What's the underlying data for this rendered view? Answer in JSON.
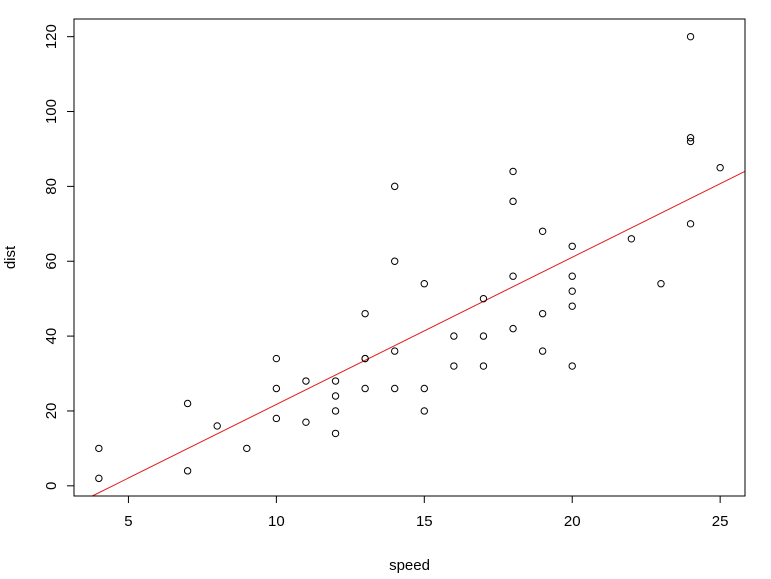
{
  "chart_data": {
    "type": "scatter",
    "title": "",
    "xlabel": "speed",
    "ylabel": "dist",
    "xlim": [
      3.16,
      25.84
    ],
    "ylim": [
      -2.72,
      124.72
    ],
    "xticks": [
      5,
      10,
      15,
      20,
      25
    ],
    "yticks": [
      0,
      20,
      40,
      60,
      80,
      100,
      120
    ],
    "x_tick_labels": [
      "5",
      "10",
      "15",
      "20",
      "25"
    ],
    "y_tick_labels": [
      "0",
      "20",
      "40",
      "60",
      "80",
      "100",
      "120"
    ],
    "grid": false,
    "points_color": "#000000",
    "line_color": "#e41a1c",
    "points": [
      [
        4,
        2
      ],
      [
        4,
        10
      ],
      [
        7,
        4
      ],
      [
        7,
        22
      ],
      [
        8,
        16
      ],
      [
        9,
        10
      ],
      [
        10,
        18
      ],
      [
        10,
        26
      ],
      [
        10,
        34
      ],
      [
        11,
        17
      ],
      [
        11,
        28
      ],
      [
        12,
        14
      ],
      [
        12,
        20
      ],
      [
        12,
        24
      ],
      [
        12,
        28
      ],
      [
        13,
        26
      ],
      [
        13,
        34
      ],
      [
        13,
        34
      ],
      [
        13,
        46
      ],
      [
        14,
        26
      ],
      [
        14,
        36
      ],
      [
        14,
        60
      ],
      [
        14,
        80
      ],
      [
        15,
        20
      ],
      [
        15,
        26
      ],
      [
        15,
        54
      ],
      [
        16,
        32
      ],
      [
        16,
        40
      ],
      [
        17,
        32
      ],
      [
        17,
        40
      ],
      [
        17,
        50
      ],
      [
        18,
        42
      ],
      [
        18,
        56
      ],
      [
        18,
        76
      ],
      [
        18,
        84
      ],
      [
        19,
        36
      ],
      [
        19,
        46
      ],
      [
        19,
        68
      ],
      [
        20,
        32
      ],
      [
        20,
        48
      ],
      [
        20,
        52
      ],
      [
        20,
        56
      ],
      [
        20,
        64
      ],
      [
        22,
        66
      ],
      [
        23,
        54
      ],
      [
        24,
        70
      ],
      [
        24,
        92
      ],
      [
        24,
        93
      ],
      [
        24,
        120
      ],
      [
        25,
        85
      ]
    ],
    "fit_line": {
      "intercept": -17.579,
      "slope": 3.932
    }
  }
}
